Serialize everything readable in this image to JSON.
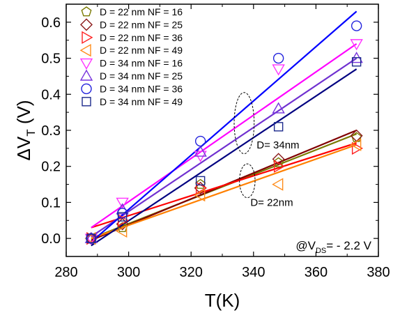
{
  "chart_data": {
    "type": "scatter",
    "xlabel": "T(K)",
    "ylabel_parts": {
      "delta": "Δ",
      "v": "V",
      "sub": "T",
      "unit": " (V)"
    },
    "xlim": [
      280,
      380
    ],
    "ylim": [
      -0.05,
      0.65
    ],
    "xticks": [
      280,
      300,
      320,
      340,
      360,
      380
    ],
    "yticks": [
      0.0,
      0.1,
      0.2,
      0.3,
      0.4,
      0.5,
      0.6
    ],
    "ytick_labels": [
      "0.0",
      "0.1",
      "0.2",
      "0.3",
      "0.4",
      "0.5",
      "0.6"
    ],
    "grid": false,
    "legend_position": "top-left",
    "x": [
      288,
      298,
      323,
      348,
      373
    ],
    "series": [
      {
        "name": "D = 22 nm NF = 16",
        "marker": "pentagon",
        "color": "#7a7a00",
        "values": [
          0.0,
          0.03,
          0.15,
          0.21,
          0.28
        ]
      },
      {
        "name": "D = 22 nm NF = 25",
        "marker": "diamond",
        "color": "#8b1a1a",
        "values": [
          0.0,
          0.04,
          0.14,
          0.22,
          0.285
        ]
      },
      {
        "name": "D = 22 nm NF = 36",
        "marker": "triangle-right",
        "color": "#ff2020",
        "values": [
          0.0,
          0.05,
          0.14,
          0.2,
          0.25
        ]
      },
      {
        "name": "D = 22 nm NF = 49",
        "marker": "triangle-left",
        "color": "#ff8c1a",
        "values": [
          0.0,
          0.02,
          0.12,
          0.15,
          0.26
        ]
      },
      {
        "name": "D = 34 nm NF = 16",
        "marker": "triangle-down",
        "color": "#ff33ff",
        "values": [
          0.0,
          0.1,
          0.23,
          0.47,
          0.54
        ]
      },
      {
        "name": "D = 34 nm NF = 25",
        "marker": "triangle-up",
        "color": "#7733dd",
        "values": [
          0.0,
          0.08,
          0.24,
          0.36,
          0.5
        ]
      },
      {
        "name": "D = 34 nm NF = 36",
        "marker": "circle",
        "color": "#2222dd",
        "values": [
          0.0,
          0.07,
          0.27,
          0.5,
          0.59
        ]
      },
      {
        "name": "D = 34 nm NF = 49",
        "marker": "square",
        "color": "#1c2a8c",
        "values": [
          0.0,
          0.06,
          0.16,
          0.31,
          0.49
        ]
      }
    ],
    "fit_lines": [
      {
        "color": "#7a7a00",
        "x": [
          288,
          373
        ],
        "y": [
          0.0,
          0.29
        ]
      },
      {
        "color": "#800000",
        "x": [
          288,
          373
        ],
        "y": [
          -0.005,
          0.3
        ]
      },
      {
        "color": "#ff0000",
        "x": [
          288,
          373
        ],
        "y": [
          0.03,
          0.265
        ]
      },
      {
        "color": "#ff8000",
        "x": [
          288,
          373
        ],
        "y": [
          0.0,
          0.26
        ]
      },
      {
        "color": "#ff00ff",
        "x": [
          288,
          373
        ],
        "y": [
          0.03,
          0.54
        ]
      },
      {
        "color": "#7030d0",
        "x": [
          288,
          373
        ],
        "y": [
          0.005,
          0.5
        ]
      },
      {
        "color": "#0000ff",
        "x": [
          288,
          373
        ],
        "y": [
          -0.01,
          0.63
        ]
      },
      {
        "color": "#000080",
        "x": [
          288,
          373
        ],
        "y": [
          -0.02,
          0.47
        ]
      }
    ],
    "annotations": [
      {
        "text": "D= 34nm",
        "x": 341,
        "y": 0.25,
        "ellipse": {
          "cx": 337,
          "cy": 0.32,
          "rx": 3.2,
          "ry": 0.085
        }
      },
      {
        "text": "D= 22nm",
        "x": 339,
        "y": 0.09,
        "ellipse": {
          "cx": 338,
          "cy": 0.16,
          "rx": 2.5,
          "ry": 0.047
        }
      }
    ],
    "condition_parts": {
      "prefix": "@V",
      "sub": "DS",
      "suffix": "= - 2.2 V"
    }
  }
}
